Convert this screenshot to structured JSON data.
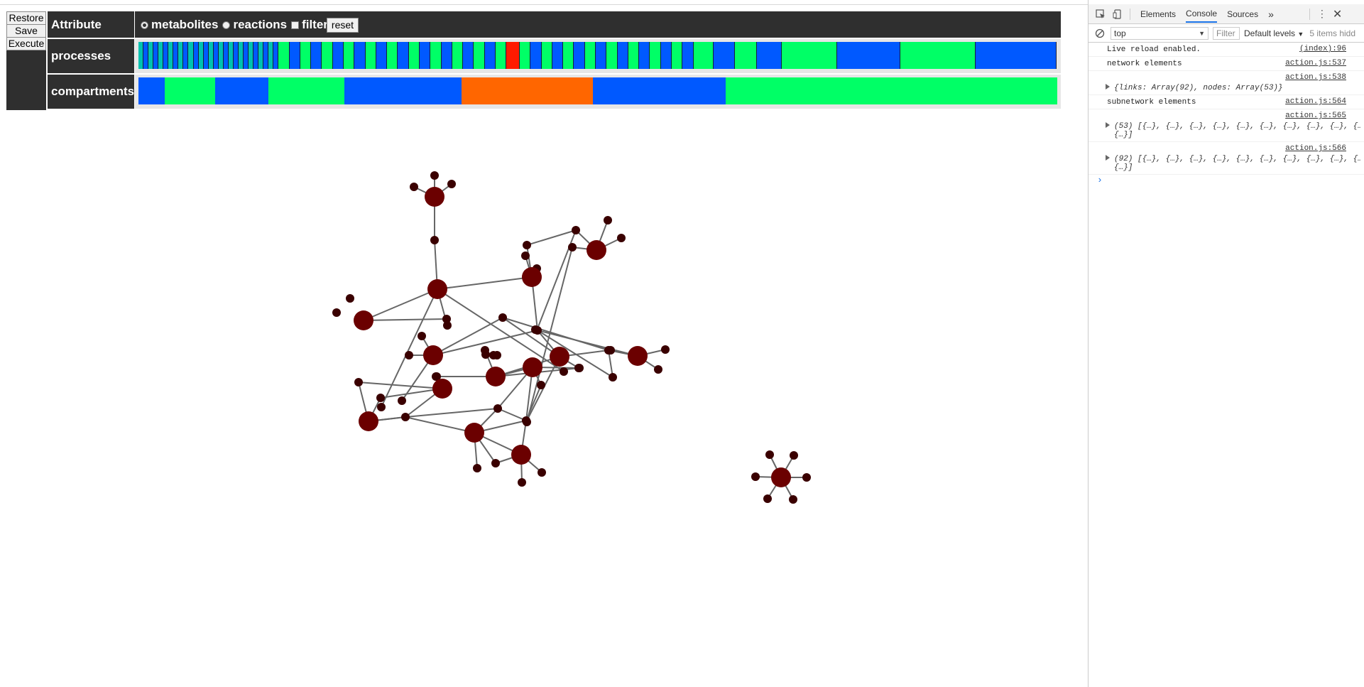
{
  "sidebar": {
    "restore_label": "Restore",
    "save_label": "Save",
    "execute_label": "Execute"
  },
  "attribute_row": {
    "label": "Attribute",
    "options": [
      {
        "label": "metabolites",
        "type": "radio",
        "checked": true
      },
      {
        "label": "reactions",
        "type": "radio",
        "checked": false
      },
      {
        "label": "filter",
        "type": "checkbox",
        "checked": false
      }
    ],
    "reset_label": "reset"
  },
  "processes_row": {
    "label": "processes",
    "colors": {
      "teal": "#00c2b0",
      "blue": "#0059ff",
      "green": "#00ff66",
      "red": "#ff1a00"
    }
  },
  "compartments_row": {
    "label": "compartments",
    "segments": [
      {
        "color": "#0059ff",
        "weight": 30
      },
      {
        "color": "#00ff66",
        "weight": 58
      },
      {
        "color": "#0059ff",
        "weight": 61
      },
      {
        "color": "#00ff66",
        "weight": 87
      },
      {
        "color": "#0059ff",
        "weight": 134
      },
      {
        "color": "#ff6600",
        "weight": 150
      },
      {
        "color": "#0059ff",
        "weight": 152
      },
      {
        "color": "#00ff66",
        "weight": 380
      }
    ]
  },
  "graph": {
    "node_color_large": "#6b0000",
    "node_color_small": "#3a0000",
    "edge_color": "#666666"
  },
  "devtools": {
    "tabs": [
      "Elements",
      "Console",
      "Sources"
    ],
    "active_tab": "Console",
    "more_tabs": "»",
    "context": "top",
    "filter_placeholder": "Filter",
    "levels": "Default levels",
    "hidden_items": "5 items hidd",
    "logs": [
      {
        "text": "Live reload enabled.",
        "source": "(index):96"
      },
      {
        "text": "network elements",
        "source": "action.js:537"
      },
      {
        "text": "{links: Array(92), nodes: Array(53)}",
        "source": "action.js:538",
        "object": true
      },
      {
        "text": "subnetwork elements",
        "source": "action.js:564"
      },
      {
        "text": "(53) [{…}, {…}, {…}, {…}, {…}, {…}, {…}, {…}, {…}, {…",
        "text2": "{…}]",
        "source": "action.js:565",
        "object": true
      },
      {
        "text": "(92) [{…}, {…}, {…}, {…}, {…}, {…}, {…}, {…}, {…}, {…",
        "text2": "{…}]",
        "source": "action.js:566",
        "object": true
      }
    ],
    "prompt": "›"
  }
}
